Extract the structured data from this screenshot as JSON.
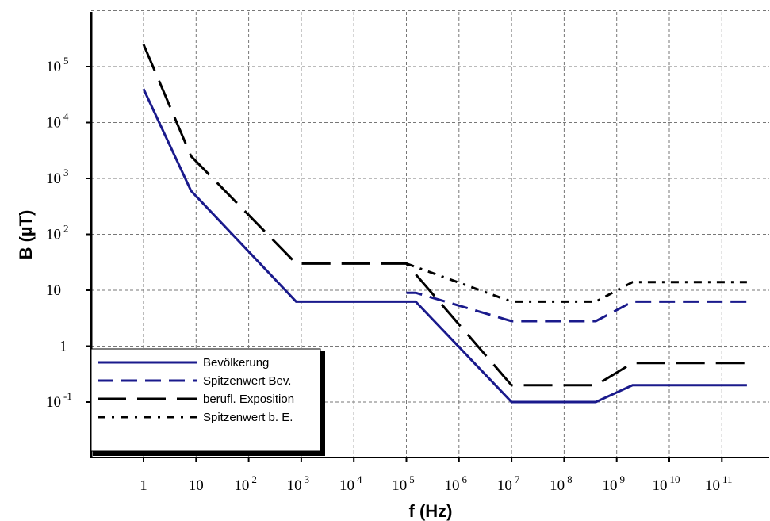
{
  "chart_data": {
    "type": "line",
    "xlabel": "f (Hz)",
    "ylabel": "B (µT)",
    "x_scale": "log",
    "y_scale": "log",
    "xlim": [
      1,
      300000000000.0
    ],
    "ylim": [
      0.01,
      1000000
    ],
    "grid": true,
    "legend_position": "bottom-left",
    "x_ticks": [
      {
        "base": "1",
        "exp": ""
      },
      {
        "base": "10",
        "exp": ""
      },
      {
        "base": "10",
        "exp": "2"
      },
      {
        "base": "10",
        "exp": "3"
      },
      {
        "base": "10",
        "exp": "4"
      },
      {
        "base": "10",
        "exp": "5"
      },
      {
        "base": "10",
        "exp": "6"
      },
      {
        "base": "10",
        "exp": "7"
      },
      {
        "base": "10",
        "exp": "8"
      },
      {
        "base": "10",
        "exp": "9"
      },
      {
        "base": "10",
        "exp": "10"
      },
      {
        "base": "10",
        "exp": "11"
      }
    ],
    "y_ticks": [
      {
        "base": "10",
        "exp": "5"
      },
      {
        "base": "10",
        "exp": "4"
      },
      {
        "base": "10",
        "exp": "3"
      },
      {
        "base": "10",
        "exp": "2"
      },
      {
        "base": "10",
        "exp": ""
      },
      {
        "base": "1",
        "exp": ""
      },
      {
        "base": "10",
        "exp": "-1"
      }
    ],
    "series": [
      {
        "name": "Bevölkerung",
        "color": "#1a1a8c",
        "dash": "solid",
        "x": [
          1,
          8,
          800,
          150000,
          10000000,
          400000000,
          2000000000,
          300000000000
        ],
        "y": [
          40000,
          600,
          6.25,
          6.25,
          0.1,
          0.1,
          0.2,
          0.2
        ]
      },
      {
        "name": "Spitzenwert Bev.",
        "color": "#1a1a8c",
        "dash": "dashed",
        "x": [
          100000,
          150000,
          10000000,
          400000000,
          2000000000,
          300000000000
        ],
        "y": [
          9,
          9,
          2.8,
          2.8,
          6.25,
          6.25
        ]
      },
      {
        "name": "berufl. Exposition",
        "color": "#000000",
        "dash": "longdash",
        "x": [
          1,
          8,
          800,
          100000,
          10000000,
          400000000,
          2000000000,
          300000000000
        ],
        "y": [
          250000,
          2500,
          30,
          30,
          0.2,
          0.2,
          0.5,
          0.5
        ]
      },
      {
        "name": "Spitzenwert b. E.",
        "color": "#000000",
        "dash": "dashdot",
        "x": [
          100000,
          10000000,
          400000000,
          2000000000,
          300000000000
        ],
        "y": [
          30,
          6.25,
          6.25,
          14,
          14
        ]
      }
    ]
  }
}
